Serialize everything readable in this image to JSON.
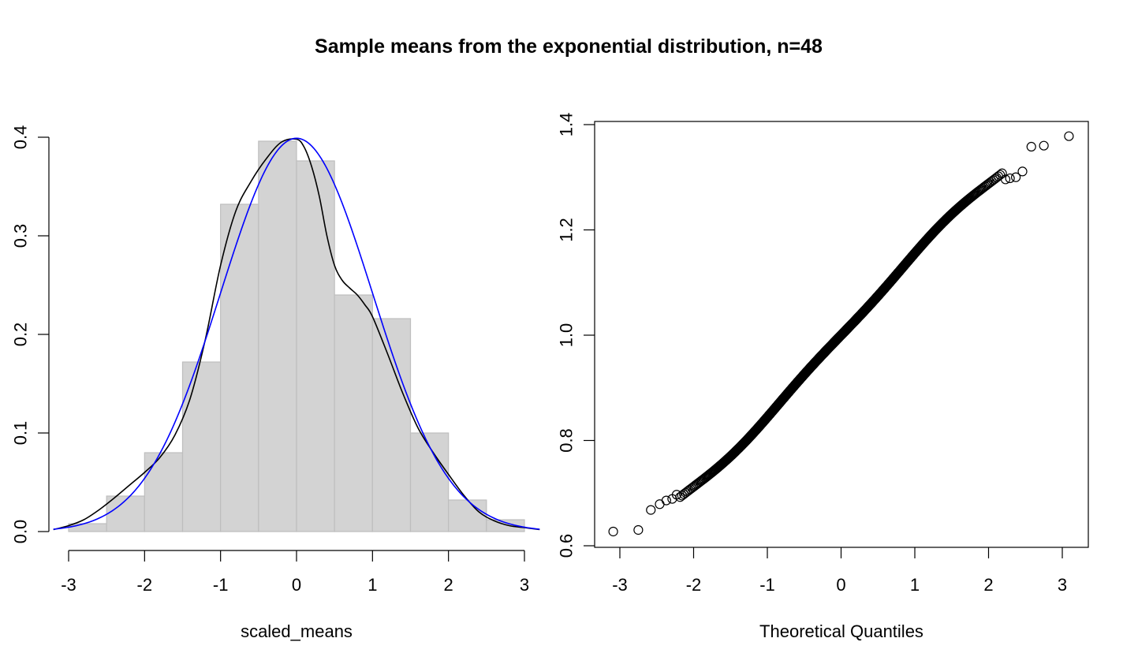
{
  "figure": {
    "title": "Sample means from the exponential distribution, n=48"
  },
  "chart_data": [
    {
      "type": "bar",
      "subtype": "histogram",
      "xlabel": "scaled_means",
      "ylabel": "",
      "xlim": [
        -3.2,
        3.2
      ],
      "ylim": [
        0,
        0.4
      ],
      "x_ticks": [
        -3,
        -2,
        -1,
        0,
        1,
        2,
        3
      ],
      "x_tick_labels": [
        "-3",
        "-2",
        "-1",
        "0",
        "1",
        "2",
        "3"
      ],
      "y_ticks": [
        0,
        0.1,
        0.2,
        0.3,
        0.4
      ],
      "y_tick_labels": [
        "0.0",
        "0.1",
        "0.2",
        "0.3",
        "0.4"
      ],
      "bins": [
        {
          "x0": -3.0,
          "x1": -2.5,
          "density": 0.008
        },
        {
          "x0": -2.5,
          "x1": -2.0,
          "density": 0.036
        },
        {
          "x0": -2.0,
          "x1": -1.5,
          "density": 0.08
        },
        {
          "x0": -1.5,
          "x1": -1.0,
          "density": 0.172
        },
        {
          "x0": -1.0,
          "x1": -0.5,
          "density": 0.332
        },
        {
          "x0": -0.5,
          "x1": 0.0,
          "density": 0.396
        },
        {
          "x0": 0.0,
          "x1": 0.5,
          "density": 0.376
        },
        {
          "x0": 0.5,
          "x1": 1.0,
          "density": 0.24
        },
        {
          "x0": 1.0,
          "x1": 1.5,
          "density": 0.216
        },
        {
          "x0": 1.5,
          "x1": 2.0,
          "density": 0.1
        },
        {
          "x0": 2.0,
          "x1": 2.5,
          "density": 0.032
        },
        {
          "x0": 2.5,
          "x1": 3.0,
          "density": 0.012
        }
      ],
      "bar_fill": "#d3d3d3",
      "bar_border": "#bebebe",
      "lines": [
        {
          "color": "#000000",
          "x": [
            -3.2,
            -3.0,
            -2.8,
            -2.6,
            -2.4,
            -2.2,
            -2.0,
            -1.8,
            -1.6,
            -1.4,
            -1.2,
            -1.0,
            -0.8,
            -0.6,
            -0.4,
            -0.2,
            0.0,
            0.1,
            0.2,
            0.3,
            0.4,
            0.5,
            0.6,
            0.7,
            0.8,
            0.9,
            1.0,
            1.2,
            1.4,
            1.6,
            1.8,
            2.0,
            2.2,
            2.4,
            2.6,
            2.8,
            3.0,
            3.2
          ],
          "y": [
            0.002,
            0.006,
            0.012,
            0.022,
            0.034,
            0.047,
            0.06,
            0.075,
            0.098,
            0.135,
            0.195,
            0.27,
            0.325,
            0.355,
            0.378,
            0.395,
            0.398,
            0.39,
            0.37,
            0.34,
            0.3,
            0.27,
            0.255,
            0.247,
            0.24,
            0.23,
            0.218,
            0.18,
            0.14,
            0.105,
            0.08,
            0.058,
            0.037,
            0.02,
            0.011,
            0.006,
            0.004,
            0.002
          ]
        },
        {
          "color": "#0000ff",
          "function": "normal_pdf",
          "mean": 0,
          "sd": 1,
          "x_range": [
            -3.2,
            3.2
          ]
        }
      ]
    },
    {
      "type": "scatter",
      "subtype": "qq-plot",
      "xlabel": "Theoretical Quantiles",
      "ylabel": "",
      "xlim": [
        -3.2,
        3.2
      ],
      "ylim": [
        0.6,
        1.4
      ],
      "x_ticks": [
        -3,
        -2,
        -1,
        0,
        1,
        2,
        3
      ],
      "x_tick_labels": [
        "-3",
        "-2",
        "-1",
        "0",
        "1",
        "2",
        "3"
      ],
      "y_ticks": [
        0.6,
        0.8,
        1.0,
        1.2,
        1.4
      ],
      "y_tick_labels": [
        "0.6",
        "0.8",
        "1.0",
        "1.2",
        "1.4"
      ],
      "marker": "open-circle",
      "n_points": 1000,
      "fit": {
        "intercept": 1.0,
        "slope": 0.144
      },
      "tail_points": [
        {
          "x": -3.09,
          "y": 0.627
        },
        {
          "x": -2.75,
          "y": 0.63
        },
        {
          "x": -2.58,
          "y": 0.668
        },
        {
          "x": -2.46,
          "y": 0.679
        },
        {
          "x": -2.37,
          "y": 0.686
        },
        {
          "x": -2.29,
          "y": 0.689
        },
        {
          "x": -2.23,
          "y": 0.697
        },
        {
          "x": 2.23,
          "y": 1.296
        },
        {
          "x": 2.29,
          "y": 1.298
        },
        {
          "x": 2.37,
          "y": 1.3
        },
        {
          "x": 2.46,
          "y": 1.311
        },
        {
          "x": 2.58,
          "y": 1.358
        },
        {
          "x": 2.75,
          "y": 1.36
        },
        {
          "x": 3.09,
          "y": 1.378
        }
      ]
    }
  ]
}
